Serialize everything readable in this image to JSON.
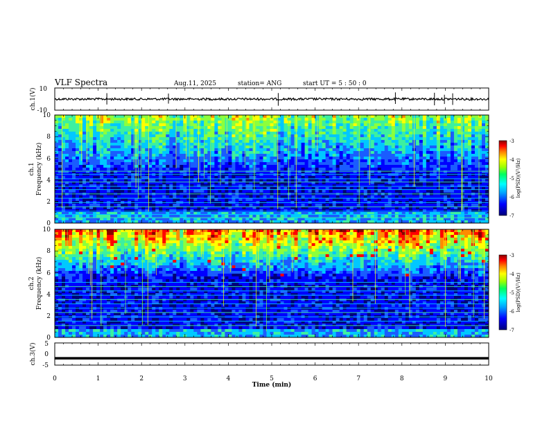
{
  "header": {
    "title": "VLF Spectra",
    "date": "Aug.11, 2025",
    "station_label": "station= ANG",
    "start_label": "start  UT =  5  : 50 : 0"
  },
  "chart_data": [
    {
      "type": "line",
      "id": "ch1-waveform",
      "ylabel": "ch.1(V)",
      "ylim": [
        -10,
        10
      ],
      "yticks": [
        "10",
        "-10"
      ],
      "xlim": [
        0,
        10
      ],
      "baseline": 0,
      "series": [
        {
          "name": "ch.1",
          "spikes_t": [
            1.2,
            2.62,
            5.15,
            7.85,
            8.75,
            8.98,
            9.17
          ]
        }
      ]
    },
    {
      "type": "heatmap",
      "id": "ch1-spectrogram",
      "ylabel_line1": "ch.1",
      "ylabel_line2": "Frequency (kHz)",
      "ylim": [
        0,
        10
      ],
      "yticks": [
        "0",
        "2",
        "4",
        "6",
        "8",
        "10"
      ],
      "xlim": [
        0,
        10
      ],
      "colorbar": {
        "label": "log(PSD)(V²/Hz)",
        "range": [
          -7,
          -3
        ],
        "ticks": [
          "-3",
          "-4",
          "-5",
          "-6",
          "-7"
        ]
      },
      "dark_band_khz": [
        1.0,
        4.5
      ],
      "line_frequencies_khz": [
        0.5,
        0.8,
        1.1,
        1.5,
        1.9,
        2.3,
        2.7,
        3.1,
        3.4,
        3.8,
        4.1,
        4.5,
        4.8
      ]
    },
    {
      "type": "heatmap",
      "id": "ch2-spectrogram",
      "ylabel_line1": "ch.2",
      "ylabel_line2": "Frequency (kHz)",
      "ylim": [
        0,
        10
      ],
      "yticks": [
        "0",
        "2",
        "4",
        "6",
        "8",
        "10"
      ],
      "xlim": [
        0,
        10
      ],
      "colorbar": {
        "label": "log(PSD)(V²/Hz)",
        "range": [
          -7,
          -3
        ],
        "ticks": [
          "-3",
          "-4",
          "-5",
          "-6",
          "-7"
        ]
      },
      "dark_band_khz": [
        0.8,
        5.5
      ],
      "line_frequencies_khz": [
        1.1,
        1.5,
        1.9,
        2.3,
        2.7,
        3.1,
        3.5,
        3.9,
        4.3,
        4.7,
        5.1
      ]
    },
    {
      "type": "line",
      "id": "ch3-waveform",
      "ylabel": "ch.3(V)",
      "ylim": [
        -5,
        5
      ],
      "yticks": [
        "5",
        "0",
        "-5"
      ],
      "xlim": [
        0,
        10
      ],
      "series": [
        {
          "name": "ch.3",
          "constant_value": -1.9
        }
      ]
    }
  ],
  "xaxis": {
    "label": "Time  (min)",
    "ticks": [
      "0",
      "1",
      "2",
      "3",
      "4",
      "5",
      "6",
      "7",
      "8",
      "9",
      "10"
    ]
  },
  "colors": {
    "scale": [
      "#00007a",
      "#0000ff",
      "#1a5cff",
      "#00c8ff",
      "#3cf0a0",
      "#8cff3c",
      "#ffff00",
      "#ff8c00",
      "#ff0000",
      "#8b0000"
    ]
  }
}
